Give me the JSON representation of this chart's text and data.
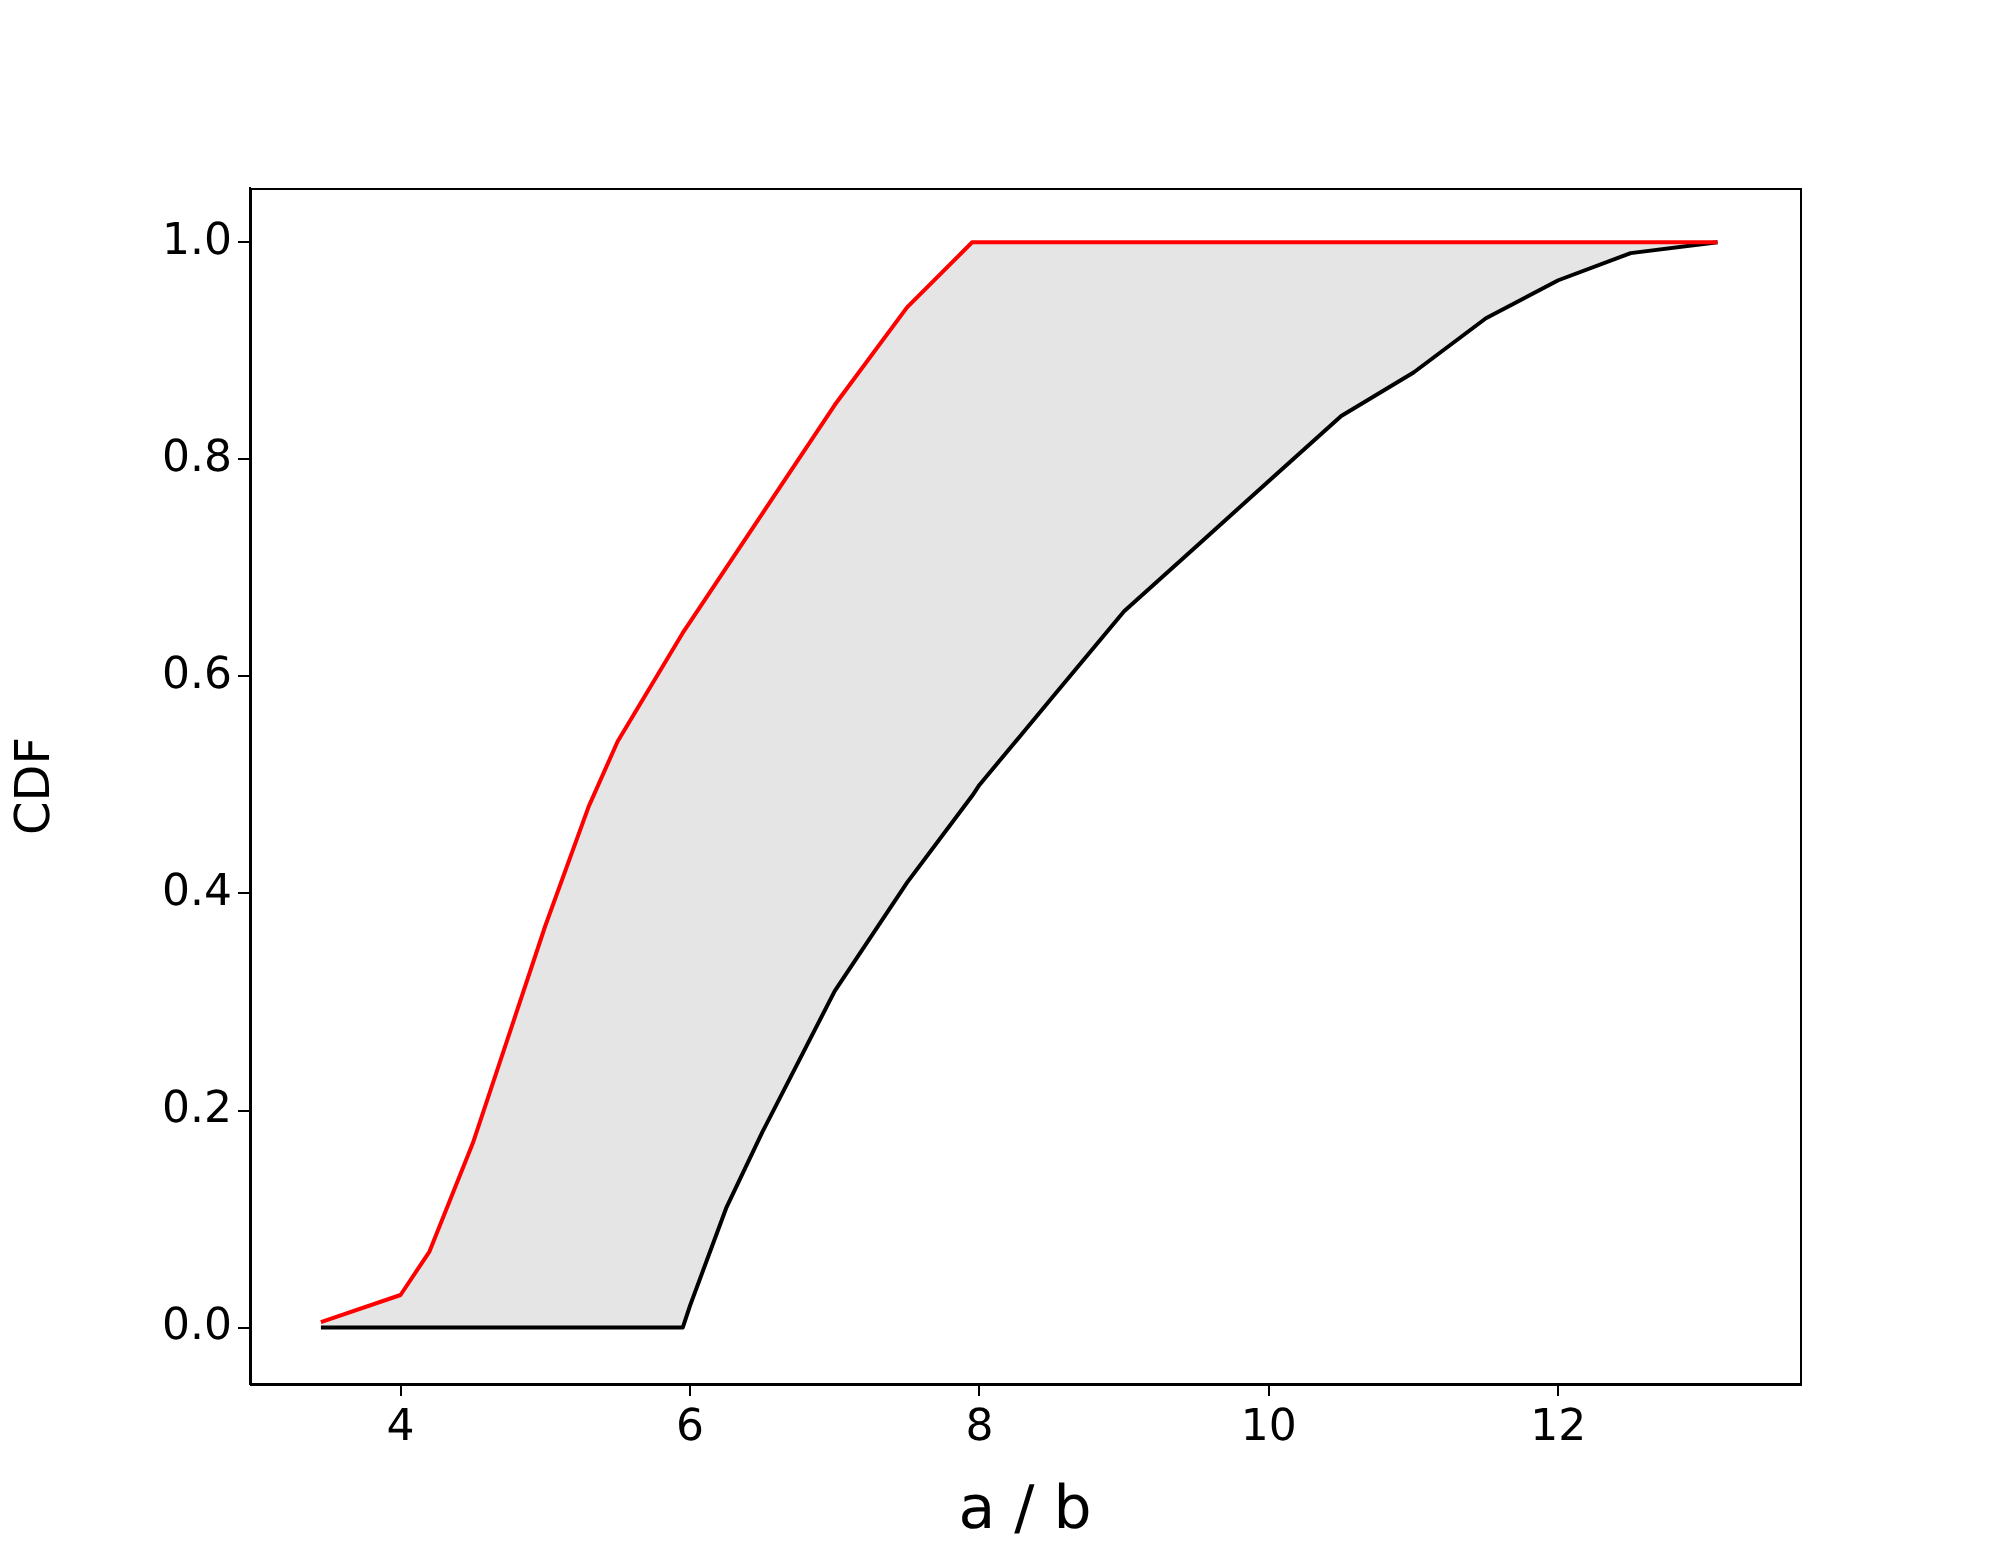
{
  "chart_data": {
    "type": "line",
    "xlabel": "a / b",
    "ylabel": "CDF",
    "x": [
      3.45,
      4.0,
      4.2,
      4.5,
      4.75,
      5.0,
      5.3,
      5.5,
      5.95,
      6.0,
      6.25,
      6.5,
      7.0,
      7.5,
      7.95,
      8.0,
      8.5,
      9.0,
      9.5,
      10.0,
      10.5,
      11.0,
      11.5,
      12.0,
      12.5,
      13.1
    ],
    "series": [
      {
        "color": "#ff0000",
        "values": [
          0.005,
          0.03,
          0.07,
          0.17,
          0.27,
          0.37,
          0.48,
          0.54,
          0.64,
          0.65,
          0.7,
          0.75,
          0.85,
          0.94,
          1.0,
          1.0,
          1.0,
          1.0,
          1.0,
          1.0,
          1.0,
          1.0,
          1.0,
          1.0,
          1.0,
          1.0
        ]
      },
      {
        "color": "#000000",
        "values": [
          0,
          0,
          0,
          0,
          0,
          0,
          0,
          0,
          0,
          0.02,
          0.11,
          0.18,
          0.31,
          0.41,
          0.49,
          0.5,
          0.58,
          0.66,
          0.72,
          0.78,
          0.84,
          0.88,
          0.93,
          0.965,
          0.99,
          1.0
        ]
      }
    ],
    "xlim": [
      2.96,
      13.67
    ],
    "ylim": [
      -0.052,
      1.05
    ],
    "xticks": [
      4,
      6,
      8,
      10,
      12
    ],
    "yticks": [
      {
        "value": 0,
        "label": "0.0"
      },
      {
        "value": 0.2,
        "label": "0.2"
      },
      {
        "value": 0.4,
        "label": "0.4"
      },
      {
        "value": 0.6,
        "label": "0.6"
      },
      {
        "value": 0.8,
        "label": "0.8"
      },
      {
        "value": 1,
        "label": "1.0"
      }
    ],
    "grid": false,
    "legend": false,
    "marker": "none",
    "line_style": "solid"
  }
}
